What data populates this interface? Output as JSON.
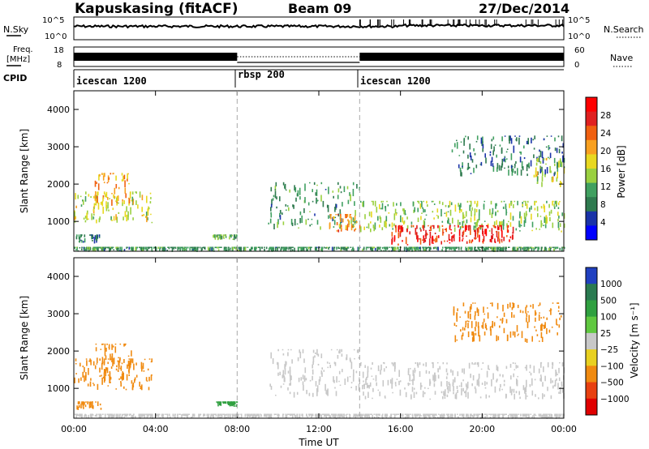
{
  "header": {
    "station": "Kapuskasing (fitACF)",
    "beam": "Beam 09",
    "date": "27/Dec/2014"
  },
  "noise": {
    "left_label": "N.Sky",
    "right_label": "N.Search",
    "ticks_left": [
      "10^5",
      "10^0"
    ],
    "ticks_right": [
      "10^5",
      "10^0"
    ]
  },
  "freq": {
    "left_label_1": "Freq.",
    "left_label_2": "[MHz]",
    "right_label": "Nave",
    "ticks_left": [
      "18",
      "8"
    ],
    "ticks_right": [
      "60",
      "0"
    ]
  },
  "cpid": {
    "label": "CPID",
    "segments": [
      {
        "name": "icescan 1200",
        "start_hour": 0,
        "end_hour": 8
      },
      {
        "name": "rbsp 200",
        "start_hour": 8,
        "end_hour": 14
      },
      {
        "name": "icescan 1200",
        "start_hour": 14,
        "end_hour": 24
      }
    ]
  },
  "chart_data": [
    {
      "type": "heatmap",
      "name": "power",
      "ylabel": "Slant Range [km]",
      "xlim_hours": [
        0,
        24
      ],
      "ylim": [
        200,
        4500
      ],
      "yticks": [
        "1000",
        "2000",
        "3000",
        "4000"
      ],
      "colorbar": {
        "label": "Power [dB]",
        "ticks": [
          "28",
          "24",
          "20",
          "16",
          "12",
          "8",
          "4"
        ],
        "colors": [
          "#0000ff",
          "#1a33a8",
          "#2f7a4f",
          "#40a060",
          "#9ad040",
          "#e8d820",
          "#f8a020",
          "#f06010",
          "#e02020",
          "#ff0000"
        ]
      },
      "echo_regions": [
        {
          "x": [
            0.0,
            3.8
          ],
          "y": [
            950,
            1800
          ],
          "level": 16
        },
        {
          "x": [
            1.0,
            2.8
          ],
          "y": [
            1400,
            2300
          ],
          "level": 20
        },
        {
          "x": [
            0.1,
            1.3
          ],
          "y": [
            400,
            650
          ],
          "level": 8
        },
        {
          "x": [
            6.8,
            8.0
          ],
          "y": [
            500,
            650
          ],
          "level": 12
        },
        {
          "x": [
            9.5,
            14.0
          ],
          "y": [
            750,
            2050
          ],
          "level": 10
        },
        {
          "x": [
            12.5,
            14.0
          ],
          "y": [
            700,
            1200
          ],
          "level": 22
        },
        {
          "x": [
            14.0,
            24.0
          ],
          "y": [
            700,
            1550
          ],
          "level": 14
        },
        {
          "x": [
            15.5,
            21.5
          ],
          "y": [
            350,
            900
          ],
          "level": 28
        },
        {
          "x": [
            18.5,
            24.0
          ],
          "y": [
            2200,
            3300
          ],
          "level": 8
        },
        {
          "x": [
            22.5,
            24.0
          ],
          "y": [
            1900,
            2700
          ],
          "level": 16
        },
        {
          "x": [
            0.0,
            24.0
          ],
          "y": [
            180,
            320
          ],
          "level": 10
        }
      ]
    },
    {
      "type": "heatmap",
      "name": "velocity",
      "ylabel": "Slant Range [km]",
      "xlabel": "Time UT",
      "xlim_hours": [
        0,
        24
      ],
      "xticks": [
        "00:00",
        "04:00",
        "08:00",
        "12:00",
        "16:00",
        "20:00",
        "00:00"
      ],
      "ylim": [
        200,
        4500
      ],
      "yticks": [
        "1000",
        "2000",
        "3000",
        "4000"
      ],
      "colorbar": {
        "label": "Velocity [m s⁻¹]",
        "ticks": [
          "1000",
          "500",
          "100",
          "25",
          "−25",
          "−100",
          "−500",
          "−1000"
        ],
        "colors": [
          "#2040c0",
          "#2a7a50",
          "#30a040",
          "#60c840",
          "#c8c8c8",
          "#e8d020",
          "#f08a10",
          "#e84010",
          "#e00000"
        ]
      },
      "echo_regions": [
        {
          "x": [
            0.0,
            3.8
          ],
          "y": [
            950,
            1800
          ],
          "level": -200
        },
        {
          "x": [
            1.0,
            2.8
          ],
          "y": [
            1400,
            2200
          ],
          "level": -300
        },
        {
          "x": [
            0.1,
            1.3
          ],
          "y": [
            400,
            650
          ],
          "level": -400
        },
        {
          "x": [
            6.8,
            8.0
          ],
          "y": [
            500,
            650
          ],
          "level": 50
        },
        {
          "x": [
            9.5,
            14.0
          ],
          "y": [
            750,
            2050
          ],
          "level": 0
        },
        {
          "x": [
            14.0,
            24.0
          ],
          "y": [
            700,
            1700
          ],
          "level": 0
        },
        {
          "x": [
            18.5,
            24.0
          ],
          "y": [
            2200,
            3300
          ],
          "level": -150
        },
        {
          "x": [
            0.0,
            24.0
          ],
          "y": [
            180,
            320
          ],
          "level": 0
        }
      ]
    }
  ]
}
